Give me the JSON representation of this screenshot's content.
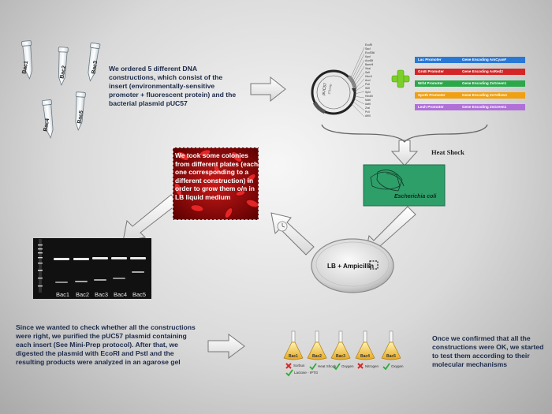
{
  "texts": {
    "order": "We ordered 5 different DNA constructions, which consist of the insert (environmentally-sensitive promoter + fluorescent protein) and the bacterial plasmid pUC57",
    "colonies": "We took some colonies from different plates (each one corresponding to a different construction) in order to grow them o/n in LB liquid medium",
    "check": "Since we wanted to check whether all the constructions were right, we purified the pUC57 plasmid containing each insert (See Mini-Prep protocol). After that, we digested the plasmid with EcoRI and PstI and the resulting products were analyzed in an agarose gel",
    "confirmed": "Once we confirmed that all the constructions were OK, we started to test them according to their molecular mechanisms",
    "heat_shock": "Heat Shock",
    "ecoli": "Escherichia coli",
    "plate": "LB + Ampicillin"
  },
  "tubes": [
    "Bac1",
    "Bac2",
    "Bac3",
    "Bac4",
    "Bac5"
  ],
  "plasmid": {
    "name": "pUC57",
    "size": "2710 bp"
  },
  "promoters": [
    {
      "promoter": "Lac Promoter",
      "gene": "Gene Encoding AmCyanF",
      "color": "#2a78d6"
    },
    {
      "promoter": "GroE Promoter",
      "gene": "Gene Encoding AsRed2",
      "color": "#d42626"
    },
    {
      "promoter": "WrbI Promoter",
      "gene": "Gene Encoding ZsGreen1",
      "color": "#2aa84a"
    },
    {
      "promoter": "Spoth Promoter",
      "gene": "Gene Encoding ZsYellow1",
      "color": "#f0a010"
    },
    {
      "promoter": "Leuh Promoter",
      "gene": "Gene Encoding ZsGreen1",
      "color": "#b070d8"
    }
  ],
  "gel_lanes": [
    "Bac1",
    "Bac2",
    "Bac3",
    "Bac4",
    "Bac5"
  ],
  "flasks": [
    {
      "name": "Bac1",
      "mark": "cross",
      "notes": [
        "Sorbus",
        "Lactose - IPTG"
      ]
    },
    {
      "name": "Bac2",
      "mark": "check",
      "notes": [
        "Heat Shock"
      ]
    },
    {
      "name": "Bac3",
      "mark": "check",
      "notes": [
        "Oxygen"
      ]
    },
    {
      "name": "Bac4",
      "mark": "cross",
      "notes": [
        "Nitrogen"
      ]
    },
    {
      "name": "Bac5",
      "mark": "check",
      "notes": [
        "Oxygen"
      ]
    }
  ],
  "colors": {
    "text": "#1b2a4a",
    "gel": "#111111",
    "ecoli_box": "#2f9f6a",
    "plus": "#7ccf2a",
    "check": "#2eaa3c",
    "cross": "#d22a2a"
  }
}
